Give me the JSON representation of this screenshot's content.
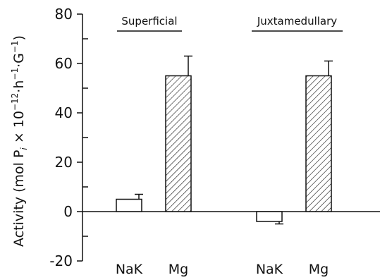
{
  "chart_data": {
    "type": "bar",
    "groups": [
      "Superficial",
      "Juxtamedullary"
    ],
    "categories": [
      "NaK",
      "Mg",
      "NaK",
      "Mg"
    ],
    "bars": [
      {
        "group": "Superficial",
        "category": "NaK",
        "value": 5,
        "error": 2,
        "fill": "open"
      },
      {
        "group": "Superficial",
        "category": "Mg",
        "value": 55,
        "error": 8,
        "fill": "hatched"
      },
      {
        "group": "Juxtamedullary",
        "category": "NaK",
        "value": -4,
        "error": 1,
        "fill": "open"
      },
      {
        "group": "Juxtamedullary",
        "category": "Mg",
        "value": 55,
        "error": 6,
        "fill": "hatched"
      }
    ],
    "ylabel": "Activity (mol Pi × 10⁻¹² · h⁻¹ · G⁻¹)",
    "ylim": [
      -20,
      80
    ],
    "yticks": [
      "80",
      "60",
      "40",
      "20",
      "0",
      "-20"
    ],
    "ytick_values": [
      80,
      60,
      40,
      20,
      0,
      -20
    ],
    "grid": false,
    "colors": {
      "ink": "#111111",
      "background": "#ffffff"
    }
  }
}
